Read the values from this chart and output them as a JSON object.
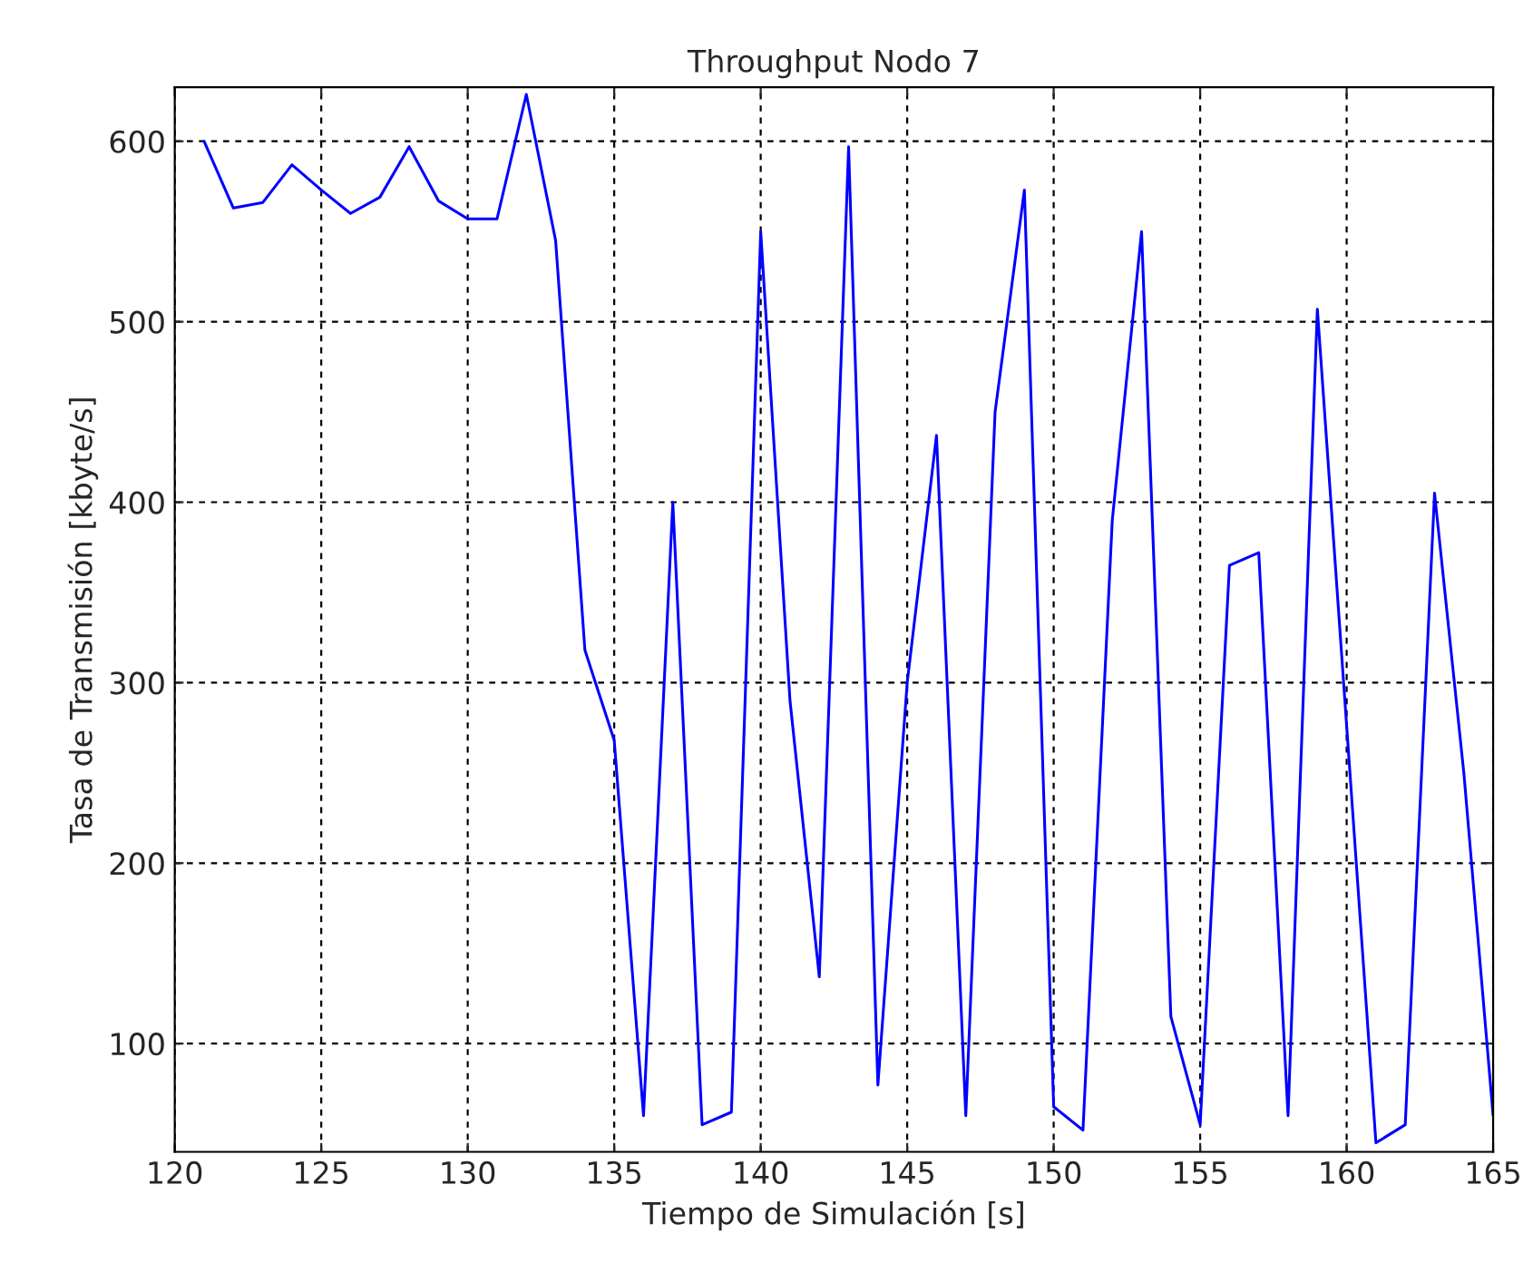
{
  "chart_data": {
    "type": "line",
    "title": "Throughput Nodo 7",
    "xlabel": "Tiempo de Simulación [s]",
    "ylabel": "Tasa de Transmisión [kbyte/s]",
    "x": [
      121,
      122,
      123,
      124,
      125,
      126,
      127,
      128,
      129,
      130,
      131,
      132,
      133,
      134,
      135,
      136,
      137,
      138,
      139,
      140,
      141,
      142,
      143,
      144,
      145,
      146,
      147,
      148,
      149,
      150,
      151,
      152,
      153,
      154,
      155,
      156,
      157,
      158,
      159,
      160,
      161,
      162,
      163,
      164,
      165
    ],
    "series": [
      {
        "color": "#0000ff",
        "values": [
          600,
          563,
          566,
          587,
          573,
          560,
          569,
          597,
          567,
          557,
          557,
          626,
          545,
          318,
          268,
          60,
          400,
          55,
          62,
          550,
          290,
          137,
          597,
          77,
          300,
          437,
          60,
          450,
          573,
          65,
          52,
          390,
          550,
          115,
          55,
          365,
          372,
          60,
          507,
          276,
          45,
          55,
          405,
          250,
          60
        ]
      }
    ],
    "xlim": [
      120,
      165
    ],
    "ylim": [
      40,
      630
    ],
    "xticks": [
      120,
      125,
      130,
      135,
      140,
      145,
      150,
      155,
      160,
      165
    ],
    "yticks": [
      100,
      200,
      300,
      400,
      500,
      600
    ],
    "grid": true,
    "line_style": "solid",
    "marker": "none"
  }
}
